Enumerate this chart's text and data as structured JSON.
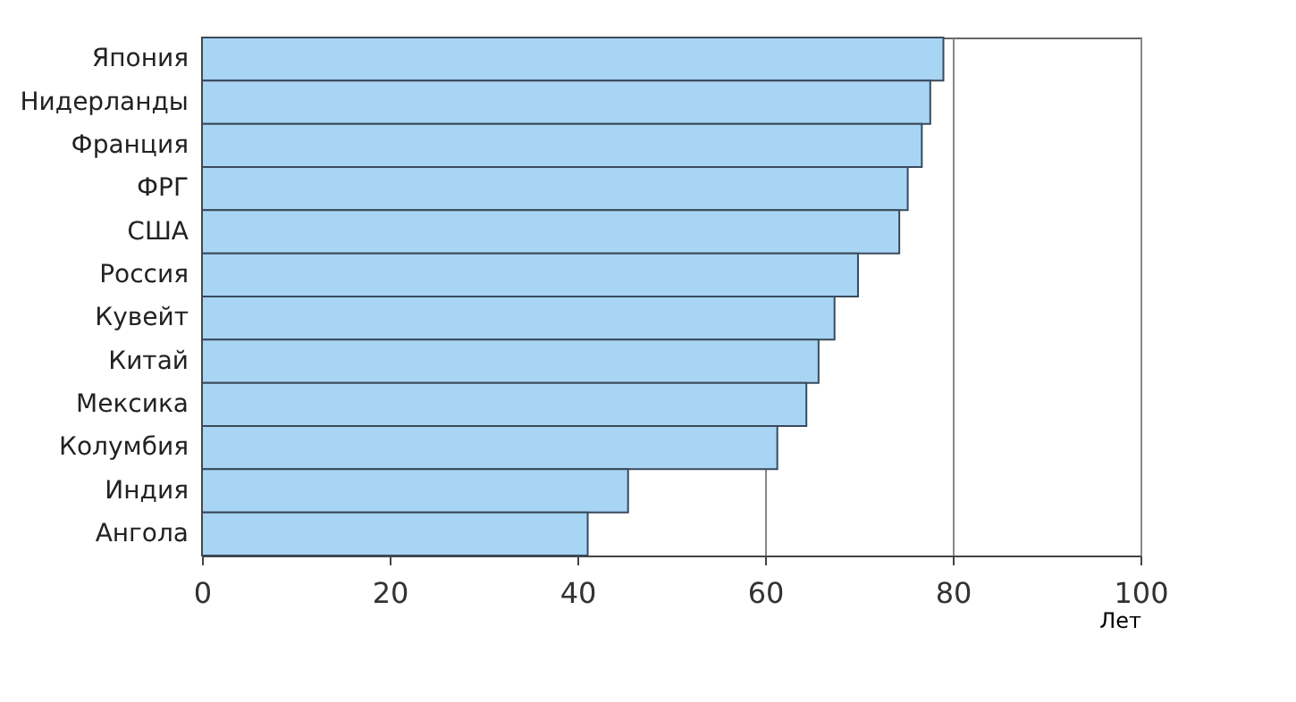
{
  "chart_data": {
    "type": "bar",
    "orientation": "horizontal",
    "xlabel": "Лет",
    "categories": [
      "Япония",
      "Нидерланды",
      "Франция",
      "ФРГ",
      "США",
      "Россия",
      "Кувейт",
      "Китай",
      "Мексика",
      "Колумбия",
      "Индия",
      "Ангола"
    ],
    "values": [
      79,
      77.6,
      76.7,
      75.2,
      74.3,
      69.9,
      67.4,
      65.7,
      64.4,
      61.3,
      45.4,
      41.1
    ],
    "color": "#a9d5f5",
    "xlim": [
      0,
      100
    ],
    "xticks": [
      0,
      20,
      40,
      60,
      80,
      100
    ],
    "grid": "x"
  }
}
